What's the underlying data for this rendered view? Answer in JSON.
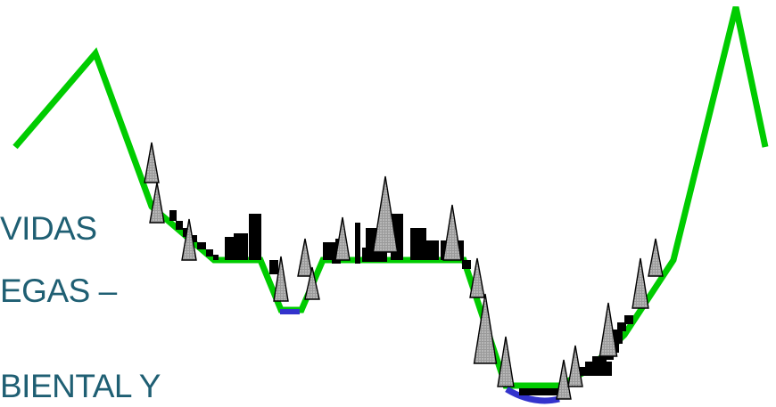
{
  "text_fragments": [
    "VIDAS",
    "EGAS –",
    "BIENTAL Y"
  ],
  "colors": {
    "terrain_line": "#00cc00",
    "water": "#3333cc",
    "buildings": "#000000",
    "tree_fill": "#8c8c8c",
    "text": "#1f5f73"
  },
  "icons": [
    "tree-icon",
    "building-icon",
    "water-body"
  ]
}
